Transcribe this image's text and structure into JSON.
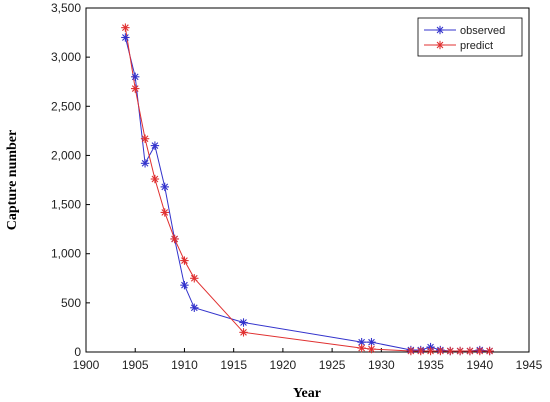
{
  "chart_data": {
    "type": "line",
    "xlabel": "Year",
    "ylabel": "Capture number",
    "xlim": [
      1900,
      1945
    ],
    "ylim": [
      0,
      3500
    ],
    "xticks": [
      1900,
      1905,
      1910,
      1915,
      1920,
      1925,
      1930,
      1935,
      1940,
      1945
    ],
    "yticks": [
      0,
      500,
      1000,
      1500,
      2000,
      2500,
      3000,
      3500
    ],
    "xtick_labels": [
      "1900",
      "1905",
      "1910",
      "1915",
      "1920",
      "1925",
      "1930",
      "1935",
      "1940",
      "1945"
    ],
    "ytick_labels": [
      "0",
      "500",
      "1,000",
      "1,500",
      "2,000",
      "2,500",
      "3,000",
      "3,500"
    ],
    "grid": false,
    "legend_position": "top-right",
    "series": [
      {
        "name": "observed",
        "color": "#3333cc",
        "marker": "asterisk",
        "x": [
          1904,
          1905,
          1906,
          1907,
          1908,
          1909,
          1910,
          1911,
          1916,
          1928,
          1929,
          1933,
          1934,
          1935,
          1936,
          1937,
          1938,
          1939,
          1940,
          1941
        ],
        "y": [
          3200,
          2800,
          1920,
          2100,
          1680,
          1150,
          680,
          450,
          300,
          100,
          100,
          20,
          20,
          50,
          20,
          10,
          10,
          10,
          20,
          10
        ]
      },
      {
        "name": "predict",
        "color": "#e03030",
        "marker": "asterisk",
        "x": [
          1904,
          1905,
          1906,
          1907,
          1908,
          1909,
          1910,
          1911,
          1916,
          1928,
          1929,
          1933,
          1934,
          1935,
          1936,
          1937,
          1938,
          1939,
          1940,
          1941
        ],
        "y": [
          3300,
          2680,
          2170,
          1760,
          1420,
          1150,
          930,
          750,
          200,
          40,
          30,
          10,
          10,
          10,
          10,
          10,
          10,
          10,
          10,
          10
        ]
      }
    ]
  }
}
